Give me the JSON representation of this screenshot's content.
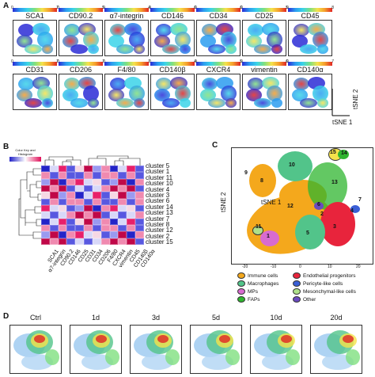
{
  "panels": {
    "A": "A",
    "B": "B",
    "C": "C",
    "D": "D"
  },
  "markers_row1": [
    {
      "name": "SCA1",
      "min": "0",
      "max": "7"
    },
    {
      "name": "CD90.2",
      "min": "0",
      "max": "5"
    },
    {
      "name": "α7-integrin",
      "min": "0",
      "max": "4"
    },
    {
      "name": "CD146",
      "min": "0",
      "max": "6"
    },
    {
      "name": "CD34",
      "min": "0",
      "max": "6"
    },
    {
      "name": "CD25",
      "min": "0",
      "max": "5"
    },
    {
      "name": "CD45",
      "min": "0",
      "max": "8"
    }
  ],
  "markers_row2": [
    {
      "name": "CD31",
      "min": "0",
      "max": "7"
    },
    {
      "name": "CD206",
      "min": "0",
      "max": "7"
    },
    {
      "name": "F4/80",
      "min": "0",
      "max": "7"
    },
    {
      "name": "CD140β",
      "min": "0",
      "max": "4"
    },
    {
      "name": "CXCR4",
      "min": "0",
      "max": "5"
    },
    {
      "name": "vimentin",
      "min": "0",
      "max": "6"
    },
    {
      "name": "CD140α",
      "min": "0",
      "max": "7"
    }
  ],
  "axes": {
    "tsne1": "tSNE 1",
    "tsne2": "tSNE 2"
  },
  "colorkey": {
    "title": "Color Key and Histogram"
  },
  "clusters": [
    "cluster 5",
    "cluster 1",
    "cluster 11",
    "cluster 10",
    "cluster 4",
    "cluster 3",
    "cluster 6",
    "cluster 14",
    "cluster 13",
    "cluster 7",
    "cluster 8",
    "cluster 12",
    "cluster 2",
    "cluster 15"
  ],
  "heat_markers": [
    "SCA1",
    "α7-integrin",
    "CD90.2",
    "CD146",
    "CD25",
    "CD31",
    "CD34",
    "CD206",
    "F4/80",
    "CXCR4",
    "vimentin",
    "CD45",
    "CD140β",
    "CD140α"
  ],
  "cluster_numbers": [
    "15",
    "14",
    "10",
    "9",
    "8",
    "13",
    "12",
    "7",
    "4",
    "6",
    "1",
    "3",
    "2",
    "5",
    "11"
  ],
  "legend": [
    {
      "label": "Immune cells",
      "color": "#f4a81c"
    },
    {
      "label": "Endothelial progenitors",
      "color": "#e8243c"
    },
    {
      "label": "Macrophages",
      "color": "#52c48a"
    },
    {
      "label": "Pericyte-like cells",
      "color": "#3a5fd6"
    },
    {
      "label": "MPs",
      "color": "#d86bd0"
    },
    {
      "label": "Mesonchymal-like cells",
      "color": "#aee08a"
    },
    {
      "label": "FAPs",
      "color": "#2fb52f"
    },
    {
      "label": "Other",
      "color": "#6a4bbf"
    }
  ],
  "tsne_ticks_x": [
    "-20",
    "-10",
    "0",
    "10",
    "20"
  ],
  "timepoints": [
    "Ctrl",
    "1d",
    "3d",
    "5d",
    "10d",
    "20d"
  ]
}
